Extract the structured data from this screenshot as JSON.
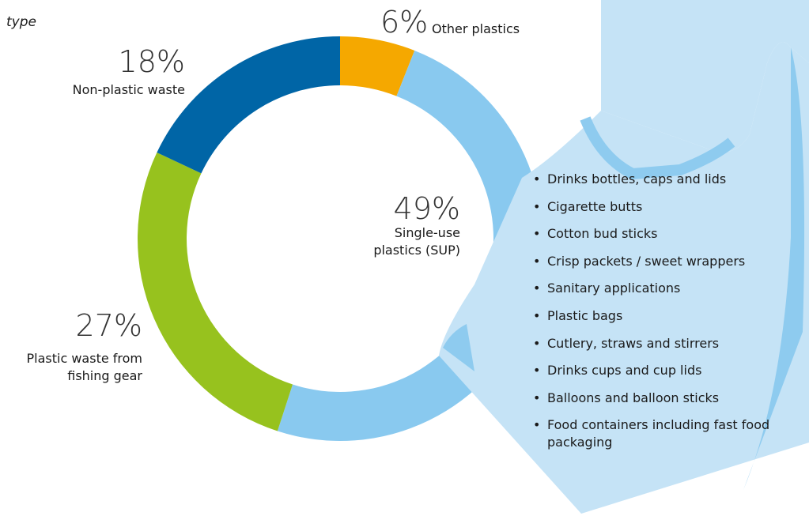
{
  "title": "type",
  "chart_data": {
    "type": "pie",
    "categories": [
      "Other plastics",
      "Single-use plastics (SUP)",
      "Plastic waste from fishing gear",
      "Non-plastic waste"
    ],
    "values": [
      6,
      49,
      27,
      18
    ],
    "value_labels": [
      "6%",
      "49%",
      "27%",
      "18%"
    ],
    "colors": [
      "#f5a800",
      "#89c9ef",
      "#97c21e",
      "#0065a6"
    ],
    "donut": true
  },
  "items": [
    "Drinks bottles, caps and lids",
    "Cigarette butts",
    "Cotton bud sticks",
    "Crisp packets / sweet wrappers",
    "Sanitary applications",
    "Plastic bags",
    "Cutlery, straws and stirrers",
    "Drinks cups and cup lids",
    "Balloons and balloon sticks",
    "Food containers including fast food packaging"
  ]
}
